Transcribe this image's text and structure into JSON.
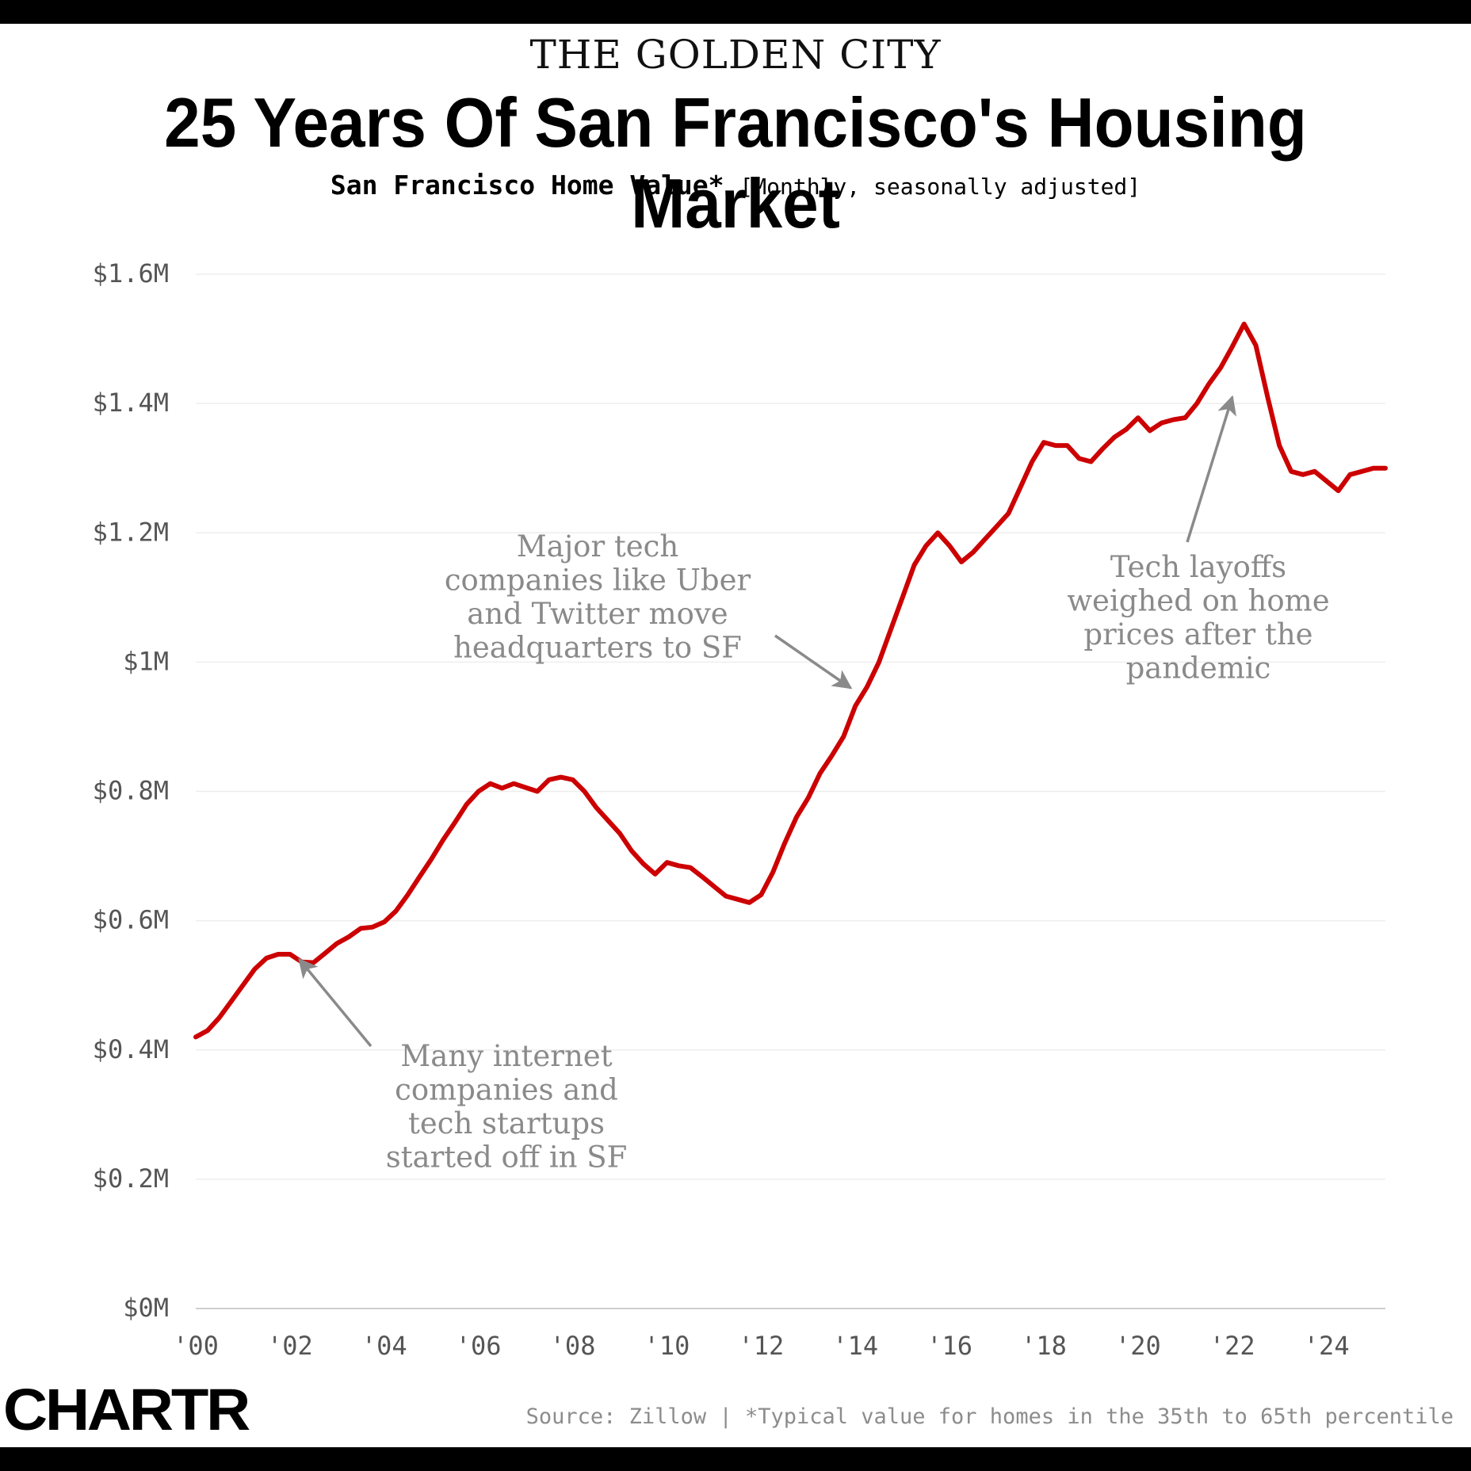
{
  "header": {
    "kicker": "THE GOLDEN CITY",
    "title": "25 Years Of San Francisco's Housing Market",
    "subtitle_main": "San Francisco Home Value*",
    "subtitle_note": "[Monthly, seasonally adjusted]"
  },
  "footer": {
    "logo": "CHARTR",
    "source": "Source: Zillow | *Typical value for homes in the 35th to 65th percentile"
  },
  "colors": {
    "line": "#cc0000",
    "annotation": "#8a8a8a",
    "axis_text": "#555555",
    "grid": "#eeeeee"
  },
  "chart_data": {
    "type": "line",
    "title": "San Francisco Home Value*",
    "xlabel": "",
    "ylabel": "",
    "xlim": [
      2000,
      2025.25
    ],
    "ylim": [
      0,
      1.6
    ],
    "unit": "USD millions",
    "x_ticks": [
      2000,
      2002,
      2004,
      2006,
      2008,
      2010,
      2012,
      2014,
      2016,
      2018,
      2020,
      2022,
      2024
    ],
    "x_tick_labels": [
      "'00",
      "'02",
      "'04",
      "'06",
      "'08",
      "'10",
      "'12",
      "'14",
      "'16",
      "'18",
      "'20",
      "'22",
      "'24"
    ],
    "y_ticks": [
      0,
      0.2,
      0.4,
      0.6,
      0.8,
      1.0,
      1.2,
      1.4,
      1.6
    ],
    "y_tick_labels": [
      "$0M",
      "$0.2M",
      "$0.4M",
      "$0.6M",
      "$0.8M",
      "$1M",
      "$1.2M",
      "$1.4M",
      "$1.6M"
    ],
    "grid": true,
    "series": [
      {
        "name": "San Francisco Home Value",
        "points": [
          [
            2000.0,
            0.42
          ],
          [
            2000.25,
            0.43
          ],
          [
            2000.5,
            0.45
          ],
          [
            2000.75,
            0.475
          ],
          [
            2001.0,
            0.5
          ],
          [
            2001.25,
            0.525
          ],
          [
            2001.5,
            0.542
          ],
          [
            2001.75,
            0.548
          ],
          [
            2002.0,
            0.548
          ],
          [
            2002.25,
            0.536
          ],
          [
            2002.5,
            0.535
          ],
          [
            2002.75,
            0.55
          ],
          [
            2003.0,
            0.565
          ],
          [
            2003.25,
            0.575
          ],
          [
            2003.5,
            0.588
          ],
          [
            2003.75,
            0.59
          ],
          [
            2004.0,
            0.598
          ],
          [
            2004.25,
            0.615
          ],
          [
            2004.5,
            0.64
          ],
          [
            2004.75,
            0.668
          ],
          [
            2005.0,
            0.695
          ],
          [
            2005.25,
            0.725
          ],
          [
            2005.5,
            0.752
          ],
          [
            2005.75,
            0.78
          ],
          [
            2006.0,
            0.8
          ],
          [
            2006.25,
            0.812
          ],
          [
            2006.5,
            0.805
          ],
          [
            2006.75,
            0.812
          ],
          [
            2007.0,
            0.806
          ],
          [
            2007.25,
            0.8
          ],
          [
            2007.5,
            0.818
          ],
          [
            2007.75,
            0.822
          ],
          [
            2008.0,
            0.818
          ],
          [
            2008.25,
            0.8
          ],
          [
            2008.5,
            0.775
          ],
          [
            2008.75,
            0.755
          ],
          [
            2009.0,
            0.735
          ],
          [
            2009.25,
            0.708
          ],
          [
            2009.5,
            0.688
          ],
          [
            2009.75,
            0.672
          ],
          [
            2010.0,
            0.69
          ],
          [
            2010.25,
            0.685
          ],
          [
            2010.5,
            0.682
          ],
          [
            2010.75,
            0.668
          ],
          [
            2011.0,
            0.653
          ],
          [
            2011.25,
            0.638
          ],
          [
            2011.5,
            0.633
          ],
          [
            2011.75,
            0.628
          ],
          [
            2012.0,
            0.64
          ],
          [
            2012.25,
            0.675
          ],
          [
            2012.5,
            0.72
          ],
          [
            2012.75,
            0.76
          ],
          [
            2013.0,
            0.79
          ],
          [
            2013.25,
            0.828
          ],
          [
            2013.5,
            0.855
          ],
          [
            2013.75,
            0.885
          ],
          [
            2014.0,
            0.932
          ],
          [
            2014.25,
            0.962
          ],
          [
            2014.5,
            1.0
          ],
          [
            2014.75,
            1.05
          ],
          [
            2015.0,
            1.1
          ],
          [
            2015.25,
            1.15
          ],
          [
            2015.5,
            1.18
          ],
          [
            2015.75,
            1.2
          ],
          [
            2016.0,
            1.18
          ],
          [
            2016.25,
            1.155
          ],
          [
            2016.5,
            1.17
          ],
          [
            2016.75,
            1.19
          ],
          [
            2017.0,
            1.21
          ],
          [
            2017.25,
            1.23
          ],
          [
            2017.5,
            1.27
          ],
          [
            2017.75,
            1.31
          ],
          [
            2018.0,
            1.34
          ],
          [
            2018.25,
            1.335
          ],
          [
            2018.5,
            1.335
          ],
          [
            2018.75,
            1.315
          ],
          [
            2019.0,
            1.31
          ],
          [
            2019.25,
            1.33
          ],
          [
            2019.5,
            1.348
          ],
          [
            2019.75,
            1.36
          ],
          [
            2020.0,
            1.378
          ],
          [
            2020.25,
            1.358
          ],
          [
            2020.5,
            1.37
          ],
          [
            2020.75,
            1.375
          ],
          [
            2021.0,
            1.378
          ],
          [
            2021.25,
            1.4
          ],
          [
            2021.5,
            1.43
          ],
          [
            2021.75,
            1.455
          ],
          [
            2022.0,
            1.488
          ],
          [
            2022.25,
            1.523
          ],
          [
            2022.5,
            1.49
          ],
          [
            2022.75,
            1.41
          ],
          [
            2023.0,
            1.335
          ],
          [
            2023.25,
            1.295
          ],
          [
            2023.5,
            1.29
          ],
          [
            2023.75,
            1.295
          ],
          [
            2024.0,
            1.28
          ],
          [
            2024.25,
            1.265
          ],
          [
            2024.5,
            1.29
          ],
          [
            2024.75,
            1.295
          ],
          [
            2025.0,
            1.3
          ],
          [
            2025.25,
            1.3
          ]
        ]
      }
    ],
    "annotations": [
      {
        "text_lines": [
          "Many internet",
          "companies and",
          "tech startups",
          "started off in SF"
        ],
        "arrow_to": [
          2002.2,
          0.54
        ]
      },
      {
        "text_lines": [
          "Major tech",
          "companies like Uber",
          "and Twitter move",
          "headquarters to SF"
        ],
        "arrow_to": [
          2013.9,
          0.96
        ]
      },
      {
        "text_lines": [
          "Tech layoffs",
          "weighed on home",
          "prices after the",
          "pandemic"
        ],
        "arrow_to": [
          2022.0,
          1.41
        ]
      }
    ]
  }
}
